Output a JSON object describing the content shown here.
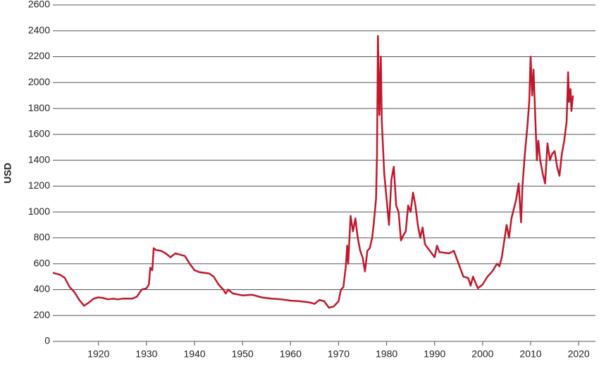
{
  "chart_data": {
    "type": "line",
    "ylabel": "USD",
    "x": [
      1910.5,
      1912,
      1913,
      1914,
      1915,
      1916,
      1917,
      1918,
      1919,
      1920,
      1921,
      1922,
      1923,
      1924,
      1925,
      1926,
      1927,
      1928,
      1929,
      1930,
      1930.5,
      1930.8,
      1931.2,
      1931.5,
      1932,
      1933,
      1934,
      1935,
      1936,
      1937,
      1938,
      1939,
      1940,
      1941,
      1942,
      1943,
      1944,
      1945,
      1946,
      1946.5,
      1947,
      1948,
      1950,
      1952,
      1954,
      1956,
      1958,
      1960,
      1962,
      1964,
      1965,
      1966,
      1967,
      1968,
      1969,
      1970,
      1970.5,
      1971,
      1971.5,
      1971.8,
      1972,
      1972.5,
      1973,
      1973.5,
      1974,
      1974.5,
      1975,
      1975.5,
      1976,
      1976.5,
      1977,
      1977.3,
      1977.8,
      1978,
      1978.2,
      1978.5,
      1978.8,
      1979,
      1979.5,
      1980,
      1980.5,
      1981,
      1981.5,
      1982,
      1982.5,
      1983,
      1983.5,
      1984,
      1984.5,
      1985,
      1985.5,
      1986,
      1986.5,
      1987,
      1987.5,
      1988,
      1989,
      1990,
      1990.5,
      1991,
      1993,
      1994,
      1995,
      1996,
      1997,
      1997.5,
      1998,
      1999,
      2000,
      2001,
      2002,
      2003,
      2003.5,
      2004,
      2005,
      2005.5,
      2006,
      2007,
      2007.5,
      2008,
      2008.3,
      2008.8,
      2009.3,
      2009.7,
      2010,
      2010.3,
      2010.6,
      2011,
      2011.3,
      2011.6,
      2012,
      2012.5,
      2013,
      2013.5,
      2014,
      2014.5,
      2015,
      2015.5,
      2016,
      2016.5,
      2017,
      2017.5,
      2017.8,
      2018,
      2018.3,
      2018.5,
      2018.8
    ],
    "series": [
      {
        "color": "#c0182b",
        "values": [
          530,
          515,
          490,
          420,
          380,
          320,
          275,
          300,
          330,
          340,
          335,
          325,
          330,
          325,
          330,
          330,
          330,
          345,
          400,
          410,
          440,
          570,
          550,
          720,
          705,
          700,
          680,
          650,
          680,
          670,
          660,
          600,
          550,
          535,
          530,
          525,
          500,
          440,
          400,
          370,
          400,
          370,
          355,
          360,
          340,
          330,
          325,
          315,
          310,
          300,
          290,
          320,
          310,
          260,
          270,
          310,
          400,
          420,
          580,
          740,
          600,
          970,
          850,
          950,
          800,
          700,
          650,
          540,
          700,
          720,
          800,
          900,
          1100,
          1450,
          2360,
          1750,
          2200,
          1700,
          1300,
          1100,
          900,
          1250,
          1350,
          1050,
          1000,
          780,
          820,
          850,
          1050,
          1000,
          1150,
          1050,
          900,
          800,
          880,
          750,
          700,
          650,
          740,
          690,
          680,
          700,
          600,
          500,
          490,
          430,
          500,
          410,
          440,
          500,
          540,
          600,
          580,
          650,
          900,
          800,
          950,
          1100,
          1220,
          920,
          1200,
          1450,
          1650,
          1850,
          2200,
          1900,
          2100,
          1700,
          1400,
          1550,
          1400,
          1300,
          1220,
          1530,
          1400,
          1450,
          1470,
          1350,
          1280,
          1450,
          1550,
          1700,
          2080,
          1850,
          1950,
          1780,
          1900
        ]
      }
    ],
    "xlim": [
      1910.5,
      2023.5
    ],
    "xticks": [
      1920,
      1930,
      1940,
      1950,
      1960,
      1970,
      1980,
      1990,
      2000,
      2010,
      2020
    ],
    "ylim": [
      0,
      2600
    ],
    "yticks": [
      0,
      200,
      400,
      600,
      800,
      1000,
      1200,
      1400,
      1600,
      1800,
      2000,
      2200,
      2400,
      2600
    ],
    "grid": true
  }
}
